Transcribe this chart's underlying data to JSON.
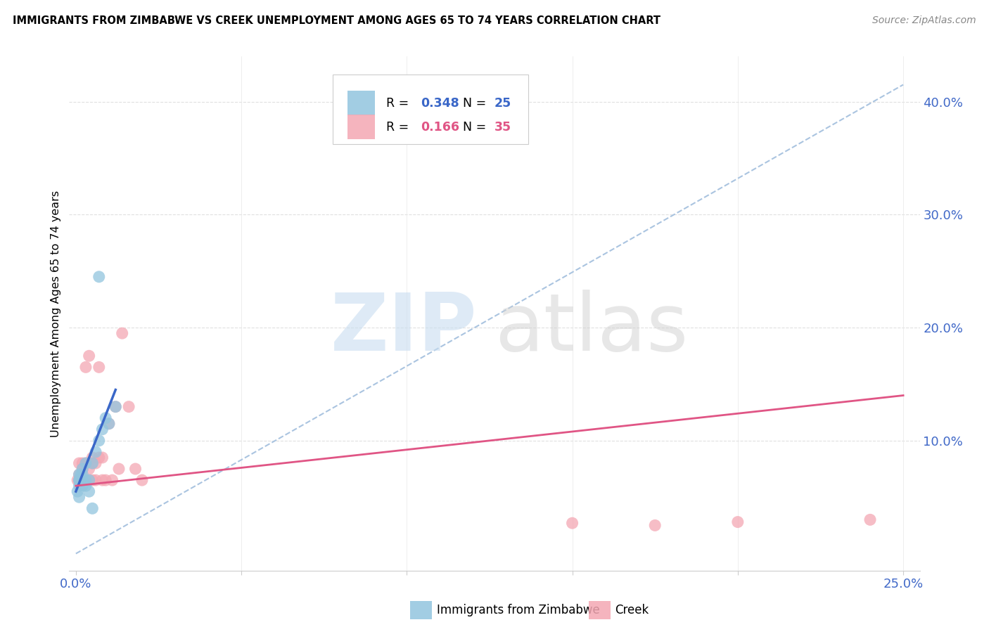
{
  "title": "IMMIGRANTS FROM ZIMBABWE VS CREEK UNEMPLOYMENT AMONG AGES 65 TO 74 YEARS CORRELATION CHART",
  "source": "Source: ZipAtlas.com",
  "ylabel": "Unemployment Among Ages 65 to 74 years",
  "xlim": [
    -0.002,
    0.255
  ],
  "ylim": [
    -0.015,
    0.44
  ],
  "legend1_r": "0.348",
  "legend1_n": "25",
  "legend2_r": "0.166",
  "legend2_n": "35",
  "series1_label": "Immigrants from Zimbabwe",
  "series2_label": "Creek",
  "blue_color": "#92c5de",
  "pink_color": "#f4a7b3",
  "trend1_color": "#3a67c8",
  "trend2_color": "#e05585",
  "dashed_color": "#aac4e0",
  "blue_scatter_x": [
    0.0005,
    0.001,
    0.001,
    0.001,
    0.001,
    0.001,
    0.0015,
    0.002,
    0.002,
    0.002,
    0.002,
    0.003,
    0.003,
    0.003,
    0.004,
    0.004,
    0.005,
    0.005,
    0.006,
    0.007,
    0.007,
    0.008,
    0.009,
    0.01,
    0.012
  ],
  "blue_scatter_y": [
    0.055,
    0.06,
    0.065,
    0.07,
    0.065,
    0.05,
    0.07,
    0.075,
    0.07,
    0.065,
    0.06,
    0.065,
    0.06,
    0.08,
    0.065,
    0.055,
    0.08,
    0.04,
    0.09,
    0.1,
    0.245,
    0.11,
    0.12,
    0.115,
    0.13
  ],
  "pink_scatter_x": [
    0.0005,
    0.001,
    0.001,
    0.001,
    0.002,
    0.002,
    0.002,
    0.003,
    0.003,
    0.003,
    0.004,
    0.004,
    0.004,
    0.005,
    0.005,
    0.005,
    0.006,
    0.006,
    0.007,
    0.007,
    0.008,
    0.008,
    0.009,
    0.01,
    0.011,
    0.012,
    0.013,
    0.014,
    0.016,
    0.018,
    0.02,
    0.15,
    0.175,
    0.2,
    0.24
  ],
  "pink_scatter_y": [
    0.065,
    0.07,
    0.065,
    0.08,
    0.065,
    0.075,
    0.08,
    0.065,
    0.08,
    0.165,
    0.065,
    0.075,
    0.175,
    0.065,
    0.08,
    0.085,
    0.065,
    0.08,
    0.085,
    0.165,
    0.065,
    0.085,
    0.065,
    0.115,
    0.065,
    0.13,
    0.075,
    0.195,
    0.13,
    0.075,
    0.065,
    0.027,
    0.025,
    0.028,
    0.03
  ],
  "blue_trend_x": [
    0.0,
    0.012
  ],
  "pink_trend_x": [
    0.0,
    0.25
  ],
  "pink_trend_y_start": 0.06,
  "pink_trend_y_end": 0.14,
  "blue_trend_y_start": 0.055,
  "blue_trend_y_end": 0.145,
  "diag_line_x": [
    0.0,
    0.25
  ],
  "diag_line_y": [
    0.0,
    0.415
  ],
  "figsize": [
    14.06,
    8.92
  ],
  "dpi": 100
}
